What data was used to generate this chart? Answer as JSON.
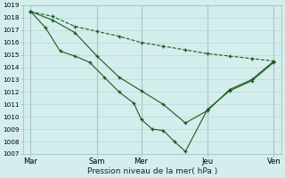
{
  "xlabel": "Pression niveau de la mer( hPa )",
  "bg_color": "#d4eded",
  "grid_color": "#b8d8d8",
  "line_color": "#1a5c1a",
  "ylim": [
    1007,
    1019
  ],
  "yticks": [
    1007,
    1008,
    1009,
    1010,
    1011,
    1012,
    1013,
    1014,
    1015,
    1016,
    1017,
    1018,
    1019
  ],
  "xtick_labels": [
    "Mar",
    "Sam",
    "Mer",
    "Jeu",
    "Ven"
  ],
  "xtick_positions": [
    0,
    36,
    60,
    96,
    132
  ],
  "xlim": [
    -4,
    136
  ],
  "vline_positions": [
    0,
    36,
    60,
    96,
    132
  ],
  "line1_x": [
    0,
    12,
    24,
    36,
    48,
    60,
    72,
    84,
    96,
    108,
    120,
    132
  ],
  "line1_y": [
    1018.5,
    1018.1,
    1017.3,
    1016.9,
    1016.5,
    1016.0,
    1015.7,
    1015.4,
    1015.1,
    1014.9,
    1014.7,
    1014.5
  ],
  "line2_x": [
    0,
    12,
    24,
    36,
    48,
    60,
    72,
    84,
    96,
    108,
    120,
    132
  ],
  "line2_y": [
    1018.5,
    1017.8,
    1016.8,
    1014.9,
    1013.2,
    1012.1,
    1011.0,
    1009.5,
    1010.5,
    1012.2,
    1013.0,
    1014.5
  ],
  "line3_x": [
    0,
    8,
    16,
    24,
    32,
    40,
    48,
    56,
    60,
    66,
    72,
    78,
    84,
    96,
    108,
    120,
    132
  ],
  "line3_y": [
    1018.5,
    1017.2,
    1015.3,
    1014.9,
    1014.4,
    1013.2,
    1012.0,
    1011.1,
    1009.8,
    1009.0,
    1008.9,
    1008.0,
    1007.2,
    1010.6,
    1012.1,
    1012.9,
    1014.4
  ],
  "figsize": [
    3.2,
    2.0
  ],
  "dpi": 100
}
